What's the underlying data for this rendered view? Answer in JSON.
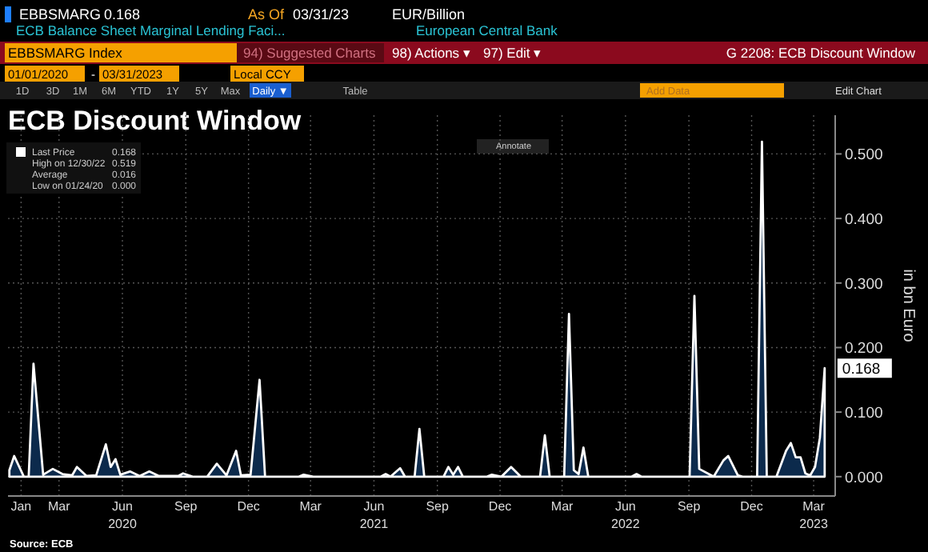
{
  "chart_data": {
    "type": "area",
    "title": "ECB Discount Window",
    "ylabel": "in bn Euro",
    "x": [
      "2020-01-03",
      "2020-01-10",
      "2020-01-24",
      "2020-01-31",
      "2020-02-07",
      "2020-02-21",
      "2020-03-06",
      "2020-03-20",
      "2020-04-03",
      "2020-04-10",
      "2020-04-24",
      "2020-05-08",
      "2020-05-22",
      "2020-05-29",
      "2020-06-05",
      "2020-06-12",
      "2020-06-26",
      "2020-07-10",
      "2020-07-24",
      "2020-08-07",
      "2020-09-04",
      "2020-09-11",
      "2020-09-25",
      "2020-10-16",
      "2020-10-30",
      "2020-11-13",
      "2020-11-27",
      "2020-12-04",
      "2020-12-18",
      "2020-12-31",
      "2021-01-08",
      "2021-02-26",
      "2021-03-05",
      "2021-03-19",
      "2021-06-25",
      "2021-07-02",
      "2021-07-09",
      "2021-07-23",
      "2021-07-30",
      "2021-08-13",
      "2021-08-20",
      "2021-08-27",
      "2021-09-24",
      "2021-10-01",
      "2021-10-08",
      "2021-10-15",
      "2021-10-22",
      "2021-11-26",
      "2021-12-03",
      "2021-12-17",
      "2021-12-31",
      "2022-01-14",
      "2022-02-11",
      "2022-02-18",
      "2022-02-25",
      "2022-03-18",
      "2022-03-25",
      "2022-04-01",
      "2022-04-08",
      "2022-04-15",
      "2022-04-22",
      "2022-06-24",
      "2022-07-01",
      "2022-07-08",
      "2022-09-16",
      "2022-09-23",
      "2022-09-30",
      "2022-10-21",
      "2022-11-04",
      "2022-11-11",
      "2022-11-25",
      "2022-12-02",
      "2022-12-23",
      "2022-12-30",
      "2023-01-06",
      "2023-01-20",
      "2023-02-03",
      "2023-02-10",
      "2023-02-17",
      "2023-02-24",
      "2023-03-03",
      "2023-03-10",
      "2023-03-17",
      "2023-03-24",
      "2023-03-31"
    ],
    "series": [
      {
        "color": "#0c2a4c",
        "values": [
          0.01,
          0.032,
          0.0,
          0.0,
          0.175,
          0.003,
          0.012,
          0.004,
          0.002,
          0.015,
          0.001,
          0.002,
          0.05,
          0.015,
          0.027,
          0.003,
          0.008,
          0.001,
          0.008,
          0.001,
          0.001,
          0.005,
          0.0,
          0.0,
          0.02,
          0.002,
          0.04,
          0.002,
          0.003,
          0.15,
          0.0,
          0.0,
          0.003,
          0.0,
          0.0,
          0.004,
          0.0,
          0.013,
          0.0,
          0.0,
          0.074,
          0.0,
          0.0,
          0.015,
          0.003,
          0.015,
          0.0,
          0.0,
          0.003,
          0.0,
          0.015,
          0.0,
          0.0,
          0.064,
          0.0,
          0.0,
          0.252,
          0.01,
          0.004,
          0.045,
          0.0,
          0.0,
          0.004,
          0.0,
          0.0,
          0.28,
          0.012,
          0.0,
          0.025,
          0.032,
          0.002,
          0.0,
          0.0,
          0.519,
          0.0,
          0.0,
          0.04,
          0.052,
          0.03,
          0.03,
          0.005,
          0.002,
          0.015,
          0.06,
          0.168
        ]
      }
    ],
    "xlim": [
      "2020-01-01",
      "2023-04-06"
    ],
    "xticks": [
      {
        "value": "2020-01-20",
        "label": "Jan"
      },
      {
        "value": "2020-03-15",
        "label": "Mar"
      },
      {
        "value": "2020-06-15",
        "label": "Jun\n2020"
      },
      {
        "value": "2020-09-15",
        "label": "Sep"
      },
      {
        "value": "2020-12-15",
        "label": "Dec"
      },
      {
        "value": "2021-03-15",
        "label": "Mar"
      },
      {
        "value": "2021-06-15",
        "label": "Jun\n2021"
      },
      {
        "value": "2021-09-15",
        "label": "Sep"
      },
      {
        "value": "2021-12-15",
        "label": "Dec"
      },
      {
        "value": "2022-03-15",
        "label": "Mar"
      },
      {
        "value": "2022-06-15",
        "label": "Jun\n2022"
      },
      {
        "value": "2022-09-15",
        "label": "Sep"
      },
      {
        "value": "2022-12-15",
        "label": "Dec"
      },
      {
        "value": "2023-03-15",
        "label": "Mar\n2023"
      }
    ],
    "ylim": [
      -0.03,
      0.56
    ],
    "yticks": [
      {
        "value": 0,
        "label": "0.000"
      },
      {
        "value": 0.1,
        "label": "0.100"
      },
      {
        "value": 0.2,
        "label": "0.200"
      },
      {
        "value": 0.3,
        "label": "0.300"
      },
      {
        "value": 0.4,
        "label": "0.400"
      },
      {
        "value": 0.5,
        "label": "0.500"
      }
    ],
    "grid": true,
    "annotations": [
      "EBBSMARG",
      "0.168",
      "As Of",
      "03/31/23",
      "EUR/Billion",
      "ECB Balance Sheet Marginal Lending Faci...",
      "European Central Bank",
      "EBBSMARG Index",
      "94) Suggested Charts",
      "98) Actions ▾",
      "97) Edit ▾",
      "G 2208: ECB Discount Window",
      "01/01/2020",
      "-",
      "03/31/2023",
      "Local CCY",
      "1D",
      "3D",
      "1M",
      "6M",
      "YTD",
      "1Y",
      "5Y",
      "Max",
      "Daily ▼",
      "Table",
      "Add Data",
      "Edit Chart",
      "Annotate",
      "Last Price",
      "0.168",
      "High on 12/30/22",
      "0.519",
      "Average",
      "0.016",
      "Low on 01/24/20",
      "0.000",
      "Source: ECB",
      {
        "text": "0.168",
        "x": "2023-03-31",
        "y": 0.168
      }
    ]
  }
}
